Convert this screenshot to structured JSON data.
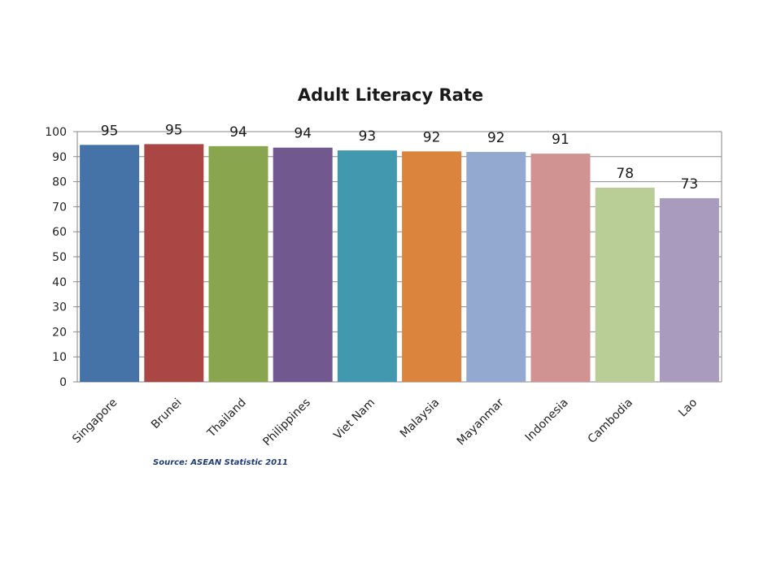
{
  "chart_data": {
    "type": "bar",
    "title": "Adult Literacy Rate",
    "categories": [
      "Singapore",
      "Brunei",
      "Thailand",
      "Philippines",
      "Viet Nam",
      "Malaysia",
      "Mayanmar",
      "Indonesia",
      "Cambodia",
      "Lao"
    ],
    "values": [
      94.7,
      95.0,
      94.2,
      93.6,
      92.5,
      92.1,
      91.9,
      91.2,
      77.6,
      73.4
    ],
    "data_labels": [
      "95",
      "95",
      "94",
      "94",
      "93",
      "92",
      "92",
      "91",
      "78",
      "73"
    ],
    "ylim": [
      0,
      100
    ],
    "yticks": [
      0,
      10,
      20,
      30,
      40,
      50,
      60,
      70,
      80,
      90,
      100
    ],
    "xlabel": "",
    "ylabel": "",
    "grid": true,
    "legend": "none",
    "colors": [
      "#4572a7",
      "#aa4643",
      "#89a54e",
      "#71588f",
      "#4198af",
      "#db843d",
      "#93a9cf",
      "#d19392",
      "#b9cd96",
      "#a99bbd"
    ]
  },
  "source_note": "Source: ASEAN Statistic  2011"
}
